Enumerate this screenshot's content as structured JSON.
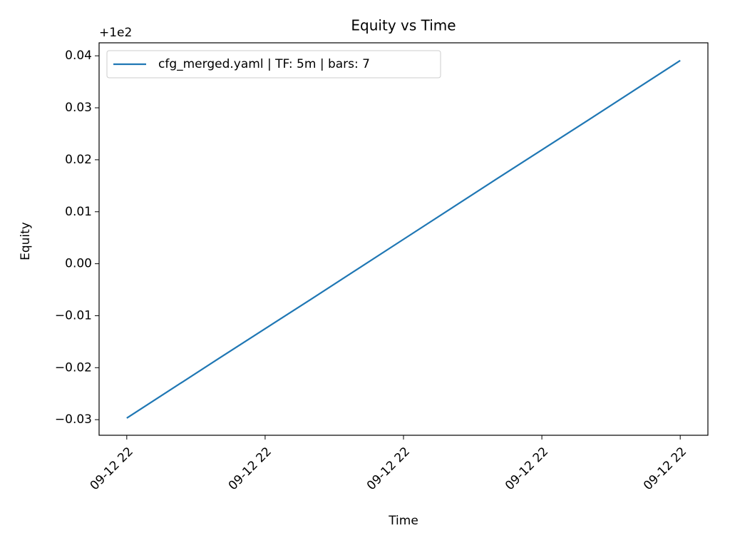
{
  "chart_data": {
    "type": "line",
    "title": "Equity vs Time",
    "x_label": "Time",
    "y_label": "Equity",
    "offset_label": "+1e2",
    "x": [
      0,
      1,
      2,
      3,
      4,
      5,
      6
    ],
    "series": [
      {
        "name": "cfg_merged.yaml | TF: 5m | bars: 7",
        "color": "#1f77b4",
        "values": [
          -0.0297,
          -0.0182,
          -0.0068,
          0.0047,
          0.0162,
          0.0276,
          0.0391
        ]
      }
    ],
    "xlim": [
      -0.3,
      6.3
    ],
    "xticks": [
      {
        "value": 0,
        "label": "09-12 22"
      },
      {
        "value": 1.5,
        "label": "09-12 22"
      },
      {
        "value": 3,
        "label": "09-12 22"
      },
      {
        "value": 4.5,
        "label": "09-12 22"
      },
      {
        "value": 6,
        "label": "09-12 22"
      }
    ],
    "ylim": [
      -0.033,
      0.0425
    ],
    "yticks": [
      {
        "value": -0.03,
        "label": "−0.03"
      },
      {
        "value": -0.02,
        "label": "−0.02"
      },
      {
        "value": -0.01,
        "label": "−0.01"
      },
      {
        "value": 0,
        "label": "0.00"
      },
      0.01,
      0.02,
      0.03,
      0.04
    ],
    "legend": "upper left"
  }
}
